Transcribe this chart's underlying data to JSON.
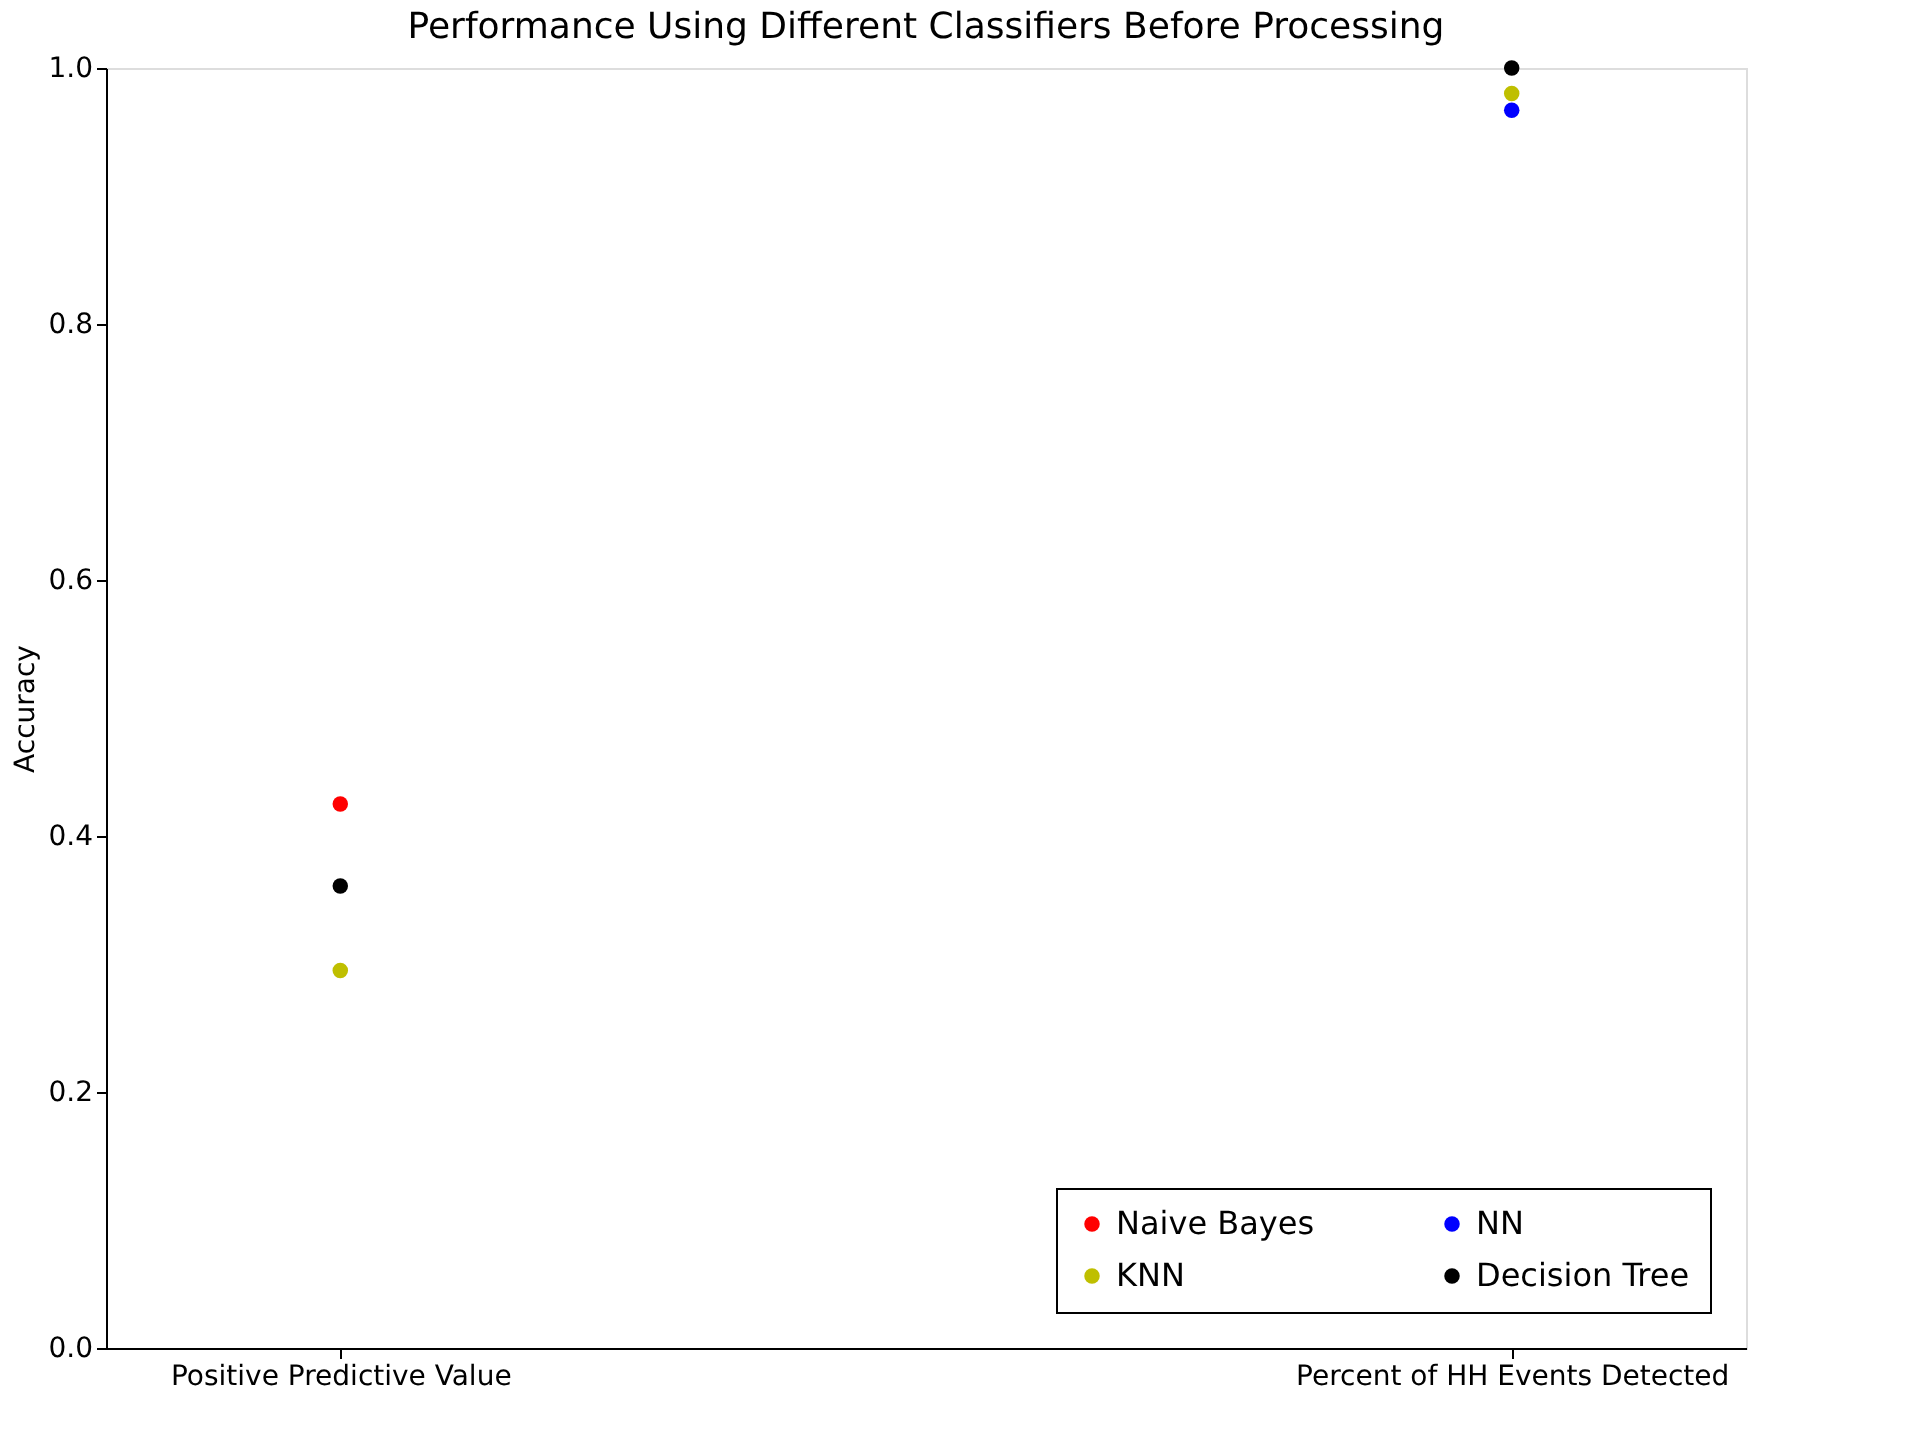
{
  "chart_data": {
    "type": "scatter",
    "title": "Performance Using Different Classifiers Before Processing",
    "ylabel": "Accuracy",
    "categories": [
      "Positive Predictive Value",
      "Percent of HH Events Detected"
    ],
    "series": [
      {
        "name": "Naive Bayes",
        "color": "#ff0000",
        "values": [
          0.425,
          null
        ]
      },
      {
        "name": "KNN",
        "color": "#bfbf00",
        "values": [
          0.295,
          0.98
        ]
      },
      {
        "name": "NN",
        "color": "#0000ff",
        "values": [
          null,
          0.967
        ]
      },
      {
        "name": "Decision Tree",
        "color": "#000000",
        "values": [
          0.361,
          1.0
        ]
      }
    ],
    "ylim": [
      0,
      1
    ],
    "yticks": [
      {
        "value": 0,
        "label": "0.0"
      },
      0.2,
      0.4,
      0.6,
      0.8,
      {
        "value": 1,
        "label": "1.0"
      }
    ],
    "grid": false,
    "legend": "bottom right",
    "marker": "circle"
  }
}
